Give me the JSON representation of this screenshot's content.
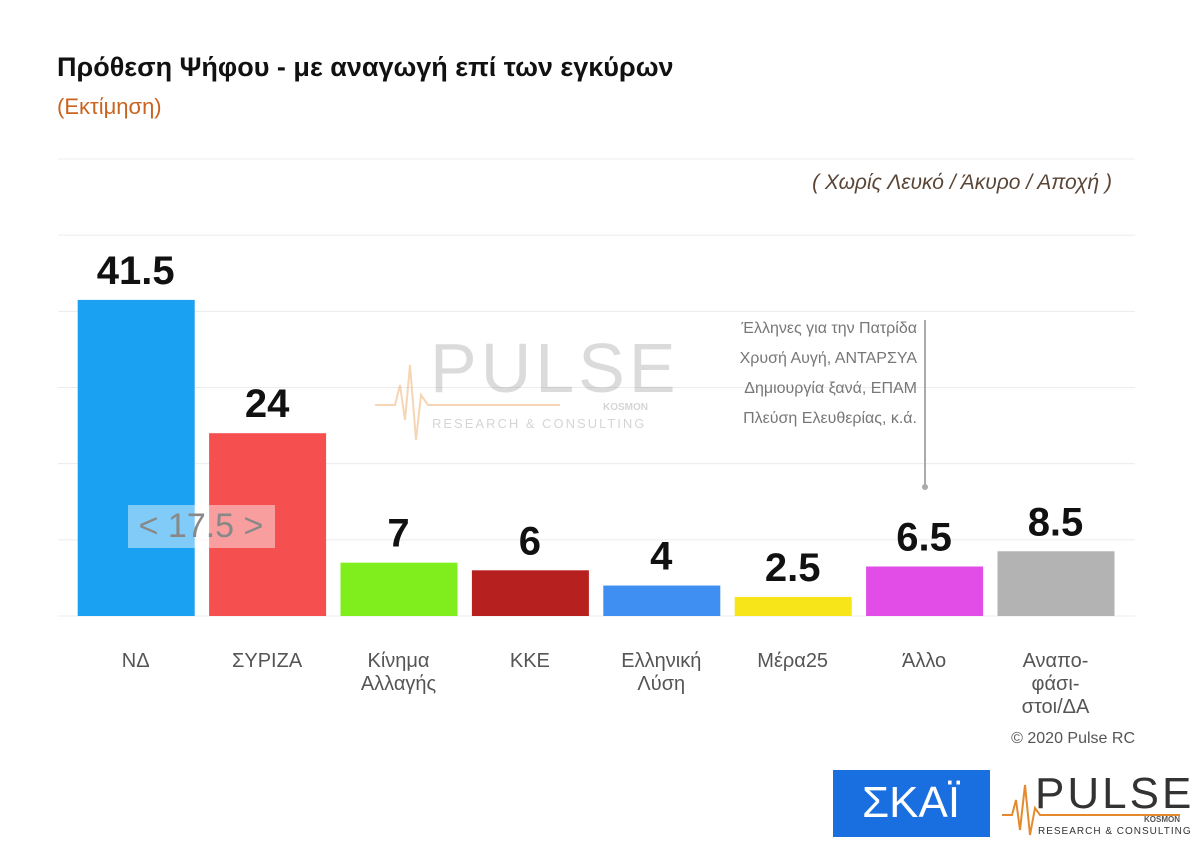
{
  "chart_data": {
    "type": "bar",
    "title": "Πρόθεση Ψήφου - με αναγωγή επί των εγκύρων",
    "subtitle": "(Εκτίμηση)",
    "note": "( Χωρίς Λευκό / Άκυρο / Αποχή )",
    "categories": [
      "ΝΔ",
      "ΣΥΡΙΖΑ",
      "Κίνημα\nΑλλαγής",
      "ΚΚΕ",
      "Ελληνική\nΛύση",
      "Μέρα25",
      "Άλλο",
      "Αναπο-\nφάσι-\nστοι/ΔΑ"
    ],
    "values": [
      41.5,
      24,
      7,
      6,
      4,
      2.5,
      6.5,
      8.5
    ],
    "colors": [
      "#1ba1f2",
      "#f54f4f",
      "#7fee1c",
      "#b6201f",
      "#3f8ff2",
      "#f7e419",
      "#e24de8",
      "#b3b3b3"
    ],
    "ylim": [
      0,
      60
    ],
    "yticks": [
      0,
      10,
      20,
      30,
      40,
      50,
      60
    ],
    "grid": true,
    "difference_label": "< 17.5 >",
    "annotation": [
      "Έλληνες για την Πατρίδα",
      "Χρυσή Αυγή, ΑΝΤΑΡΣΥΑ",
      "Δημιουργία ξανά, ΕΠΑΜ",
      "Πλεύση Ελευθερίας, κ.ά."
    ],
    "copyright": "© 2020 Pulse RC",
    "watermark": {
      "brand": "PULSE",
      "sub": "KOSMON",
      "tagline": "RESEARCH & CONSULTING"
    },
    "logos": {
      "broadcaster": "ΣΚΑΪ",
      "pollster": "PULSE",
      "sub": "KOSMON",
      "tagline": "RESEARCH & CONSULTING"
    }
  }
}
